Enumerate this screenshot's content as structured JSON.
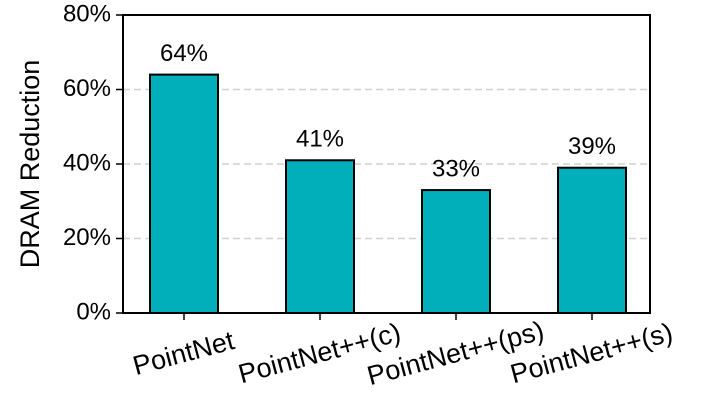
{
  "chart_data": {
    "type": "bar",
    "y_label": "DRAM Reduction",
    "categories": [
      "PointNet",
      "PointNet++(c)",
      "PointNet++(ps)",
      "PointNet++(s)"
    ],
    "values": [
      64,
      41,
      33,
      39
    ],
    "value_labels": [
      "64%",
      "41%",
      "33%",
      "39%"
    ],
    "color": "#00afb9",
    "ylim": [
      0,
      80
    ],
    "yticks": [
      {
        "value": 0,
        "label": "0%"
      },
      {
        "value": 20,
        "label": "20%"
      },
      {
        "value": 40,
        "label": "40%"
      },
      {
        "value": 60,
        "label": "60%"
      },
      {
        "value": 80,
        "label": "80%"
      }
    ],
    "grid": true
  }
}
